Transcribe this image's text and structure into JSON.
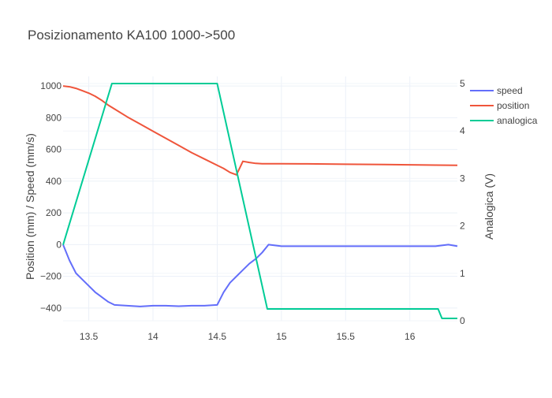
{
  "chart_data": {
    "type": "line",
    "title": "Posizionamento KA100 1000->500",
    "xlabel": "",
    "ylabel": "Position (mm) / Speed (mm/s)",
    "y2label": "Analogica (V)",
    "xlim": [
      13.3,
      16.37
    ],
    "ylim": [
      -480,
      1060
    ],
    "y2lim": [
      0,
      5.15
    ],
    "x_ticks": [
      "13.5",
      "14",
      "14.5",
      "15",
      "15.5",
      "16"
    ],
    "y_ticks": [
      "1000",
      "800",
      "600",
      "400",
      "200",
      "0",
      "−200",
      "−400"
    ],
    "y2_ticks": [
      "5",
      "4",
      "3",
      "2",
      "1",
      "0"
    ],
    "grid": true,
    "legend_position": "top-right",
    "series": [
      {
        "name": "speed",
        "color": "#636efa",
        "axis": "y",
        "x": [
          13.3,
          13.35,
          13.4,
          13.45,
          13.5,
          13.55,
          13.6,
          13.65,
          13.7,
          13.8,
          13.9,
          14.0,
          14.1,
          14.2,
          14.3,
          14.4,
          14.5,
          14.55,
          14.6,
          14.65,
          14.7,
          14.75,
          14.8,
          14.85,
          14.9,
          15.0,
          15.2,
          15.5,
          15.8,
          16.0,
          16.2,
          16.3,
          16.37
        ],
        "y": [
          0,
          -100,
          -180,
          -220,
          -260,
          -300,
          -330,
          -360,
          -380,
          -385,
          -390,
          -385,
          -385,
          -388,
          -385,
          -385,
          -380,
          -300,
          -240,
          -200,
          -160,
          -120,
          -90,
          -50,
          0,
          -10,
          -10,
          -10,
          -10,
          -10,
          -10,
          0,
          -10
        ]
      },
      {
        "name": "position",
        "color": "#ef553b",
        "axis": "y",
        "x": [
          13.3,
          13.35,
          13.4,
          13.45,
          13.5,
          13.55,
          13.6,
          13.65,
          13.7,
          13.8,
          13.9,
          14.0,
          14.1,
          14.2,
          14.3,
          14.4,
          14.5,
          14.55,
          14.6,
          14.65,
          14.7,
          14.75,
          14.8,
          14.85,
          14.9,
          15.0,
          15.2,
          15.5,
          15.8,
          16.0,
          16.2,
          16.37
        ],
        "y": [
          1000,
          995,
          985,
          970,
          955,
          935,
          910,
          880,
          855,
          805,
          760,
          715,
          670,
          625,
          580,
          540,
          500,
          480,
          455,
          440,
          525,
          518,
          512,
          510,
          510,
          510,
          509,
          507,
          505,
          503,
          501,
          500
        ]
      },
      {
        "name": "analogica",
        "color": "#00cc96",
        "axis": "y2",
        "x": [
          13.3,
          13.68,
          13.72,
          13.9,
          14.1,
          14.3,
          14.5,
          14.89,
          14.92,
          15.0,
          15.2,
          15.5,
          15.8,
          16.0,
          16.22,
          16.25,
          16.3,
          16.37
        ],
        "y": [
          1.6,
          5.0,
          5.0,
          5.0,
          5.0,
          5.0,
          5.0,
          0.25,
          0.25,
          0.25,
          0.25,
          0.25,
          0.25,
          0.25,
          0.25,
          0.05,
          0.05,
          0.05
        ]
      }
    ]
  }
}
